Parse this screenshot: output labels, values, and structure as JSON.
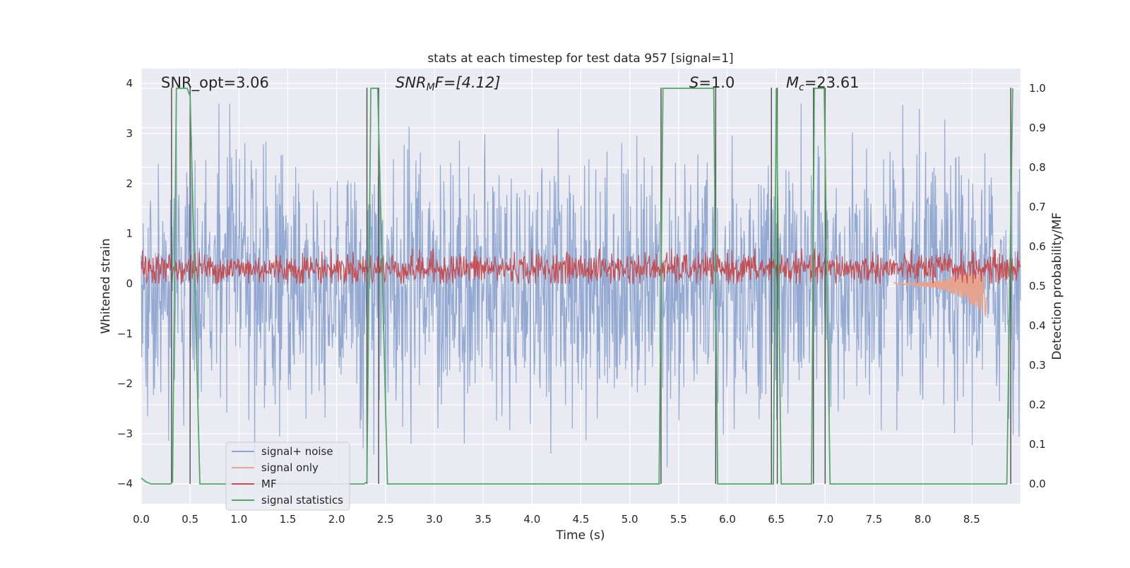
{
  "chart_data": {
    "type": "line",
    "title": "stats at each timestep for test data 957 [signal=1]",
    "xlabel": "Time (s)",
    "ylabel_left": "Whitened strain",
    "ylabel_right": "Detection probability/MF",
    "xlim": [
      0.0,
      9.0
    ],
    "ylim_left": [
      -4.4,
      4.3
    ],
    "ylim_right": [
      -0.05,
      1.05
    ],
    "x_ticks": [
      "0.0",
      "0.5",
      "1.0",
      "1.5",
      "2.0",
      "2.5",
      "3.0",
      "3.5",
      "4.0",
      "4.5",
      "5.0",
      "5.5",
      "6.0",
      "6.5",
      "7.0",
      "7.5",
      "8.0",
      "8.5"
    ],
    "y_ticks_left": [
      "4",
      "3",
      "2",
      "1",
      "0",
      "−1",
      "−2",
      "−3",
      "−4"
    ],
    "y_ticks_right": [
      "1.0",
      "0.9",
      "0.8",
      "0.7",
      "0.6",
      "0.5",
      "0.4",
      "0.3",
      "0.2",
      "0.1",
      "0.0"
    ],
    "grid": true,
    "legend_position": "lower-left",
    "annotations": {
      "snr_opt": "SNR_opt=3.06",
      "snr_mf_main": "SNR",
      "snr_mf_sub": "M",
      "snr_mf_rest": "F=[4.12]",
      "s_main": "S",
      "s_rest": "=1.0",
      "mc_main": "M",
      "mc_sub": "c",
      "mc_rest": "=23.61"
    },
    "series": [
      {
        "name": "signal+ noise",
        "color": "#8ea5d0",
        "description_values": "noise, amplitude approx -4 to 3.5 whitened strain, sampled across 0-9 s"
      },
      {
        "name": "signal only",
        "color": "#e8a38f",
        "chirp_end_time": 8.65,
        "chirp_min": -0.65,
        "chirp_max": 0.2
      },
      {
        "name": "MF",
        "color": "#c44e52",
        "range": [
          0.0,
          0.7
        ]
      },
      {
        "name": "signal statistics",
        "color": "#55a868",
        "x": [
          0.0,
          0.05,
          0.1,
          0.3,
          0.32,
          0.36,
          0.47,
          0.5,
          0.6,
          2.28,
          2.31,
          2.35,
          2.42,
          2.52,
          5.3,
          5.34,
          5.86,
          5.9,
          6.43,
          6.47,
          6.5,
          6.55,
          6.86,
          6.89,
          6.99,
          7.05,
          8.86,
          8.92
        ],
        "values": [
          0.015,
          0.005,
          0.0,
          0.0,
          0.005,
          1.0,
          1.0,
          0.98,
          0.0,
          0.0,
          0.005,
          1.0,
          1.0,
          0.0,
          0.0,
          1.0,
          1.0,
          0.0,
          0.0,
          0.0,
          1.0,
          0.0,
          0.0,
          1.0,
          1.0,
          0.0,
          0.0,
          1.0
        ]
      }
    ],
    "detection_markers_x": [
      0.31,
      0.5,
      2.31,
      2.43,
      5.32,
      5.88,
      6.45,
      6.51,
      6.88,
      7.0,
      8.9
    ],
    "detection_marker_color": "#4d4d4d"
  },
  "legend": {
    "items": [
      {
        "label": "signal+ noise",
        "color": "#8ea5d0"
      },
      {
        "label": "signal only",
        "color": "#e8a38f"
      },
      {
        "label": "MF",
        "color": "#c44e52"
      },
      {
        "label": "signal statistics",
        "color": "#55a868"
      }
    ]
  },
  "colors": {
    "axes_bg": "#eaeaf2",
    "grid": "#ffffff"
  }
}
